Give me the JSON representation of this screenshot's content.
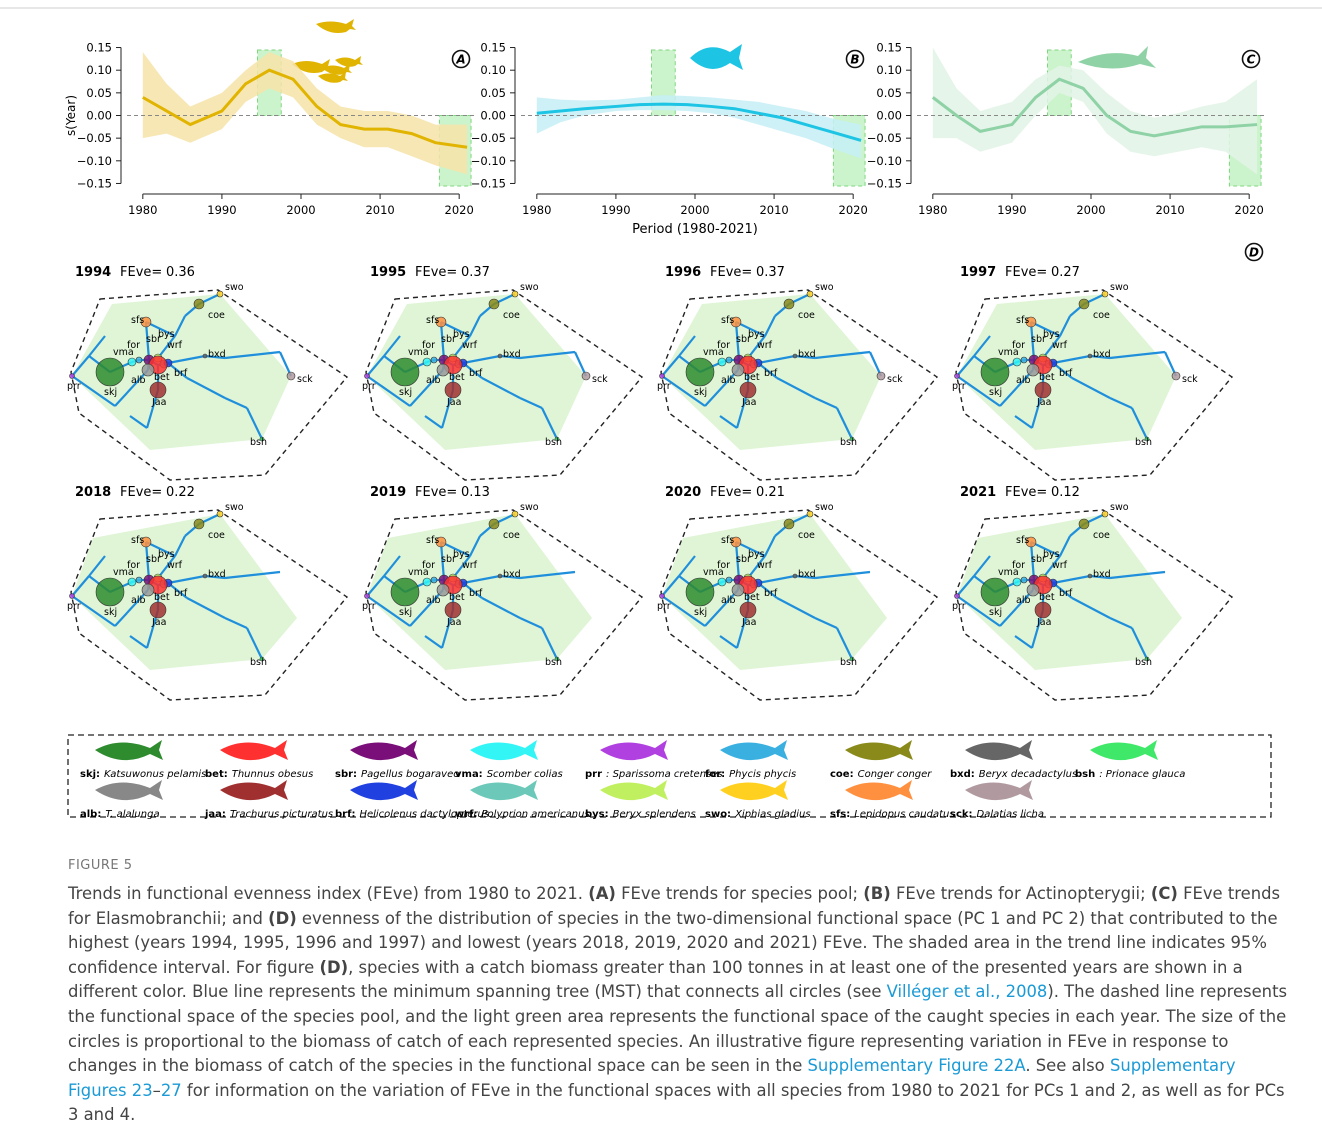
{
  "chart_data": [
    {
      "type": "line",
      "panel_label": "A",
      "ylabel": "s(Year)",
      "x": [
        1980,
        1983,
        1986,
        1990,
        1993,
        1996,
        1999,
        2002,
        2005,
        2008,
        2011,
        2014,
        2017,
        2021
      ],
      "series": [
        {
          "color": "#e0b400",
          "values": [
            0.04,
            0.01,
            -0.02,
            0.01,
            0.07,
            0.1,
            0.08,
            0.02,
            -0.02,
            -0.03,
            -0.03,
            -0.04,
            -0.06,
            -0.07
          ]
        }
      ],
      "ci_upper": [
        0.14,
        0.07,
        0.02,
        0.05,
        0.1,
        0.14,
        0.12,
        0.06,
        0.02,
        0.01,
        0.01,
        0.0,
        -0.02,
        -0.02
      ],
      "ci_lower": [
        -0.05,
        -0.04,
        -0.06,
        -0.03,
        0.03,
        0.06,
        0.04,
        -0.02,
        -0.05,
        -0.07,
        -0.07,
        -0.09,
        -0.11,
        -0.13
      ],
      "band_color": "#f6e3a8",
      "hline": 0,
      "highlight_years": [
        [
          1995,
          1997
        ],
        [
          2018,
          2021
        ]
      ],
      "xlim": [
        1978,
        2022
      ],
      "ylim": [
        -0.16,
        0.16
      ],
      "xticks": [
        1980,
        1990,
        2000,
        2010,
        2020
      ],
      "yticks": [
        {
          "value": 0.15,
          "label": "0.15"
        },
        {
          "value": 0.1,
          "label": "0.10"
        },
        {
          "value": 0.05,
          "label": "0.05"
        },
        {
          "value": 0,
          "label": "0.00"
        },
        {
          "value": -0.05,
          "label": "−0.05"
        },
        {
          "value": -0.1,
          "label": "−0.10"
        },
        {
          "value": -0.15,
          "label": "−0.15"
        }
      ]
    },
    {
      "type": "line",
      "panel_label": "B",
      "xlabel": "Period (1980-2021)",
      "x": [
        1980,
        1983,
        1986,
        1990,
        1993,
        1996,
        1999,
        2002,
        2005,
        2008,
        2011,
        2014,
        2017,
        2021
      ],
      "series": [
        {
          "color": "#1ec4e4",
          "values": [
            0.005,
            0.01,
            0.015,
            0.02,
            0.024,
            0.025,
            0.024,
            0.02,
            0.015,
            0.005,
            -0.005,
            -0.02,
            -0.035,
            -0.055
          ]
        }
      ],
      "ci_upper": [
        0.04,
        0.035,
        0.033,
        0.035,
        0.04,
        0.045,
        0.043,
        0.04,
        0.035,
        0.03,
        0.02,
        0.01,
        -0.005,
        -0.02
      ],
      "ci_lower": [
        -0.04,
        -0.015,
        0,
        0.01,
        0.012,
        0.012,
        0.01,
        0.005,
        -0.005,
        -0.02,
        -0.035,
        -0.05,
        -0.07,
        -0.095
      ],
      "band_color": "#c6eef6",
      "hline": 0,
      "highlight_years": [
        [
          1995,
          1997
        ],
        [
          2018,
          2021
        ]
      ],
      "xlim": [
        1978,
        2022
      ],
      "ylim": [
        -0.16,
        0.16
      ],
      "xticks": [
        1980,
        1990,
        2000,
        2010,
        2020
      ],
      "yticks": [
        {
          "value": 0.15,
          "label": "0.15"
        },
        {
          "value": 0.1,
          "label": "0.10"
        },
        {
          "value": 0.05,
          "label": "0.05"
        },
        {
          "value": 0,
          "label": "0.00"
        },
        {
          "value": -0.05,
          "label": "−0.05"
        },
        {
          "value": -0.1,
          "label": "−0.10"
        },
        {
          "value": -0.15,
          "label": "−0.15"
        }
      ]
    },
    {
      "type": "line",
      "panel_label": "C",
      "x": [
        1980,
        1983,
        1986,
        1990,
        1993,
        1996,
        1999,
        2002,
        2005,
        2008,
        2011,
        2014,
        2017,
        2021
      ],
      "series": [
        {
          "color": "#8ed2a6",
          "values": [
            0.04,
            0.0,
            -0.035,
            -0.02,
            0.04,
            0.08,
            0.06,
            0.0,
            -0.035,
            -0.045,
            -0.035,
            -0.025,
            -0.025,
            -0.02
          ]
        }
      ],
      "ci_upper": [
        0.15,
        0.06,
        0.01,
        0.03,
        0.08,
        0.11,
        0.1,
        0.05,
        0.01,
        -0.005,
        0.005,
        0.02,
        0.03,
        0.08
      ],
      "ci_lower": [
        -0.05,
        -0.05,
        -0.08,
        -0.06,
        0.0,
        0.05,
        0.03,
        -0.04,
        -0.08,
        -0.09,
        -0.08,
        -0.07,
        -0.08,
        -0.13
      ],
      "band_color": "#e2f3e6",
      "hline": 0,
      "highlight_years": [
        [
          1995,
          1997
        ],
        [
          2018,
          2021
        ]
      ],
      "xlim": [
        1978,
        2022
      ],
      "ylim": [
        -0.16,
        0.16
      ],
      "xticks": [
        1980,
        1990,
        2000,
        2010,
        2020
      ],
      "yticks": [
        {
          "value": 0.15,
          "label": "0.15"
        },
        {
          "value": 0.1,
          "label": "0.10"
        },
        {
          "value": 0.05,
          "label": "0.05"
        },
        {
          "value": 0,
          "label": "0.00"
        },
        {
          "value": -0.05,
          "label": "−0.05"
        },
        {
          "value": -0.1,
          "label": "−0.10"
        },
        {
          "value": -0.15,
          "label": "−0.15"
        }
      ]
    }
  ],
  "panel_d": {
    "panel_label": "D",
    "index_prefix": "FEve=",
    "panels": [
      {
        "year": 1994,
        "feve": 0.36,
        "labels": [
          "skj",
          "vma",
          "for",
          "sbr",
          "bys",
          "sfs",
          "swo",
          "coe",
          "wrf",
          "bxd",
          "brf",
          "bet",
          "alb",
          "Jaa",
          "prr",
          "bsh",
          "sck"
        ]
      },
      {
        "year": 1995,
        "feve": 0.37,
        "labels": [
          "skj",
          "vma",
          "for",
          "sbr",
          "bys",
          "sfs",
          "swo",
          "coe",
          "wrf",
          "bxd",
          "brf",
          "bet",
          "alb",
          "Jaa",
          "prr",
          "bsh",
          "sck"
        ]
      },
      {
        "year": 1996,
        "feve": 0.37,
        "labels": [
          "skj",
          "vma",
          "for",
          "sbr",
          "bys",
          "sfs",
          "swo",
          "coe",
          "wrf",
          "bxd",
          "brf",
          "bet",
          "alb",
          "Jaa",
          "prr",
          "bsh",
          "sck"
        ]
      },
      {
        "year": 1997,
        "feve": 0.27,
        "labels": [
          "skj",
          "vma",
          "for",
          "sbr",
          "bys",
          "sfs",
          "swo",
          "coe",
          "wrf",
          "bxd",
          "brf",
          "bet",
          "alb",
          "Jaa",
          "prr",
          "bsh",
          "sck"
        ]
      },
      {
        "year": 2018,
        "feve": 0.22,
        "labels": [
          "skj",
          "vma",
          "for",
          "sbr",
          "bys",
          "sfs",
          "swo",
          "coe",
          "wrf",
          "bxd",
          "brf",
          "bet",
          "alb",
          "Jaa",
          "prr",
          "bsh"
        ]
      },
      {
        "year": 2019,
        "feve": 0.13,
        "labels": [
          "skj",
          "vma",
          "for",
          "sbr",
          "bys",
          "sfs",
          "swo",
          "coe",
          "wrf",
          "bxd",
          "brf",
          "bet",
          "alb",
          "Jaa",
          "prr",
          "bsh"
        ]
      },
      {
        "year": 2020,
        "feve": 0.21,
        "labels": [
          "skj",
          "vma",
          "for",
          "sbr",
          "bys",
          "sfs",
          "swo",
          "coe",
          "wrf",
          "bxd",
          "brf",
          "bet",
          "alb",
          "Jaa",
          "prr",
          "bsh"
        ]
      },
      {
        "year": 2021,
        "feve": 0.12,
        "labels": [
          "skj",
          "vma",
          "for",
          "sbr",
          "bys",
          "sfs",
          "swo",
          "coe",
          "wrf",
          "bxd",
          "brf",
          "bet",
          "alb",
          "Jaa",
          "prr",
          "bsh"
        ]
      }
    ]
  },
  "legend": [
    {
      "code": "skj:",
      "name": "Katsuwonus pelamis",
      "color": "#2e8b2e"
    },
    {
      "code": "bet:",
      "name": "Thunnus obesus",
      "color": "#ff3030"
    },
    {
      "code": "sbr:",
      "name": "Pagellus bogaraveo",
      "color": "#7a0f7a"
    },
    {
      "code": "vma:",
      "name": "Scomber colias",
      "color": "#33f5f5"
    },
    {
      "code": "prr",
      "name": ": Sparissoma cretenses",
      "color": "#b040e0"
    },
    {
      "code": "for:",
      "name": "Phycis phycis",
      "color": "#3ab0e0"
    },
    {
      "code": "coe:",
      "name": "Conger conger",
      "color": "#8a8a1a"
    },
    {
      "code": "bxd:",
      "name": "Beryx decadactylus",
      "color": "#666666"
    },
    {
      "code": "bsh",
      "name": ": Prionace glauca",
      "color": "#3fe868"
    },
    {
      "code": "alb:",
      "name": "T. alalunga",
      "color": "#888888"
    },
    {
      "code": "jaa:",
      "name": "Trachurus picturatus",
      "color": "#a03030"
    },
    {
      "code": "brf:",
      "name": "Helicolenus dactylopterus",
      "color": "#2040e0"
    },
    {
      "code": "wrf:",
      "name": "Polyprion americanus",
      "color": "#6cc8b8"
    },
    {
      "code": "bys:",
      "name": "Beryx splendens",
      "color": "#c0f060"
    },
    {
      "code": "swo:",
      "name": "Xiphias gladius",
      "color": "#ffd020"
    },
    {
      "code": "sfs:",
      "name": "Lepidopus caudatus",
      "color": "#ff9040"
    },
    {
      "code": "sck:",
      "name": "Dalatias licha",
      "color": "#b09aa0"
    }
  ],
  "caption": {
    "label": "FIGURE 5",
    "parts": [
      {
        "text": "Trends in functional evenness index (FEve) from 1980 to 2021. "
      },
      {
        "text": "(A)",
        "bold": true
      },
      {
        "text": " FEve trends for species pool; "
      },
      {
        "text": "(B)",
        "bold": true
      },
      {
        "text": " FEve trends for Actinopterygii; "
      },
      {
        "text": "(C)",
        "bold": true
      },
      {
        "text": " FEve trends for Elasmobranchii; and "
      },
      {
        "text": "(D)",
        "bold": true
      },
      {
        "text": " evenness of the distribution of species in the two-dimensional functional space (PC 1 and PC 2) that contributed to the highest (years 1994, 1995, 1996 and 1997) and lowest (years 2018, 2019, 2020 and 2021) FEve. The shaded area in the trend line indicates 95% confidence interval. For figure "
      },
      {
        "text": "(D)",
        "bold": true
      },
      {
        "text": ", species with a catch biomass greater than 100 tonnes in at least one of the presented years are shown in a different color. Blue line represents the minimum spanning tree (MST) that connects all circles (see "
      },
      {
        "text": "Villéger et al., 2008",
        "link": true
      },
      {
        "text": "). The dashed line represents the functional space of the species pool, and the light green area represents the functional space of the caught species in each year. The size of the circles is proportional to the biomass of catch of each represented species. An illustrative figure representing variation in FEve in response to changes in the biomass of catch of the species in the functional space can be seen in the "
      },
      {
        "text": "Supplementary Figure 22A",
        "link": true
      },
      {
        "text": ". See also "
      },
      {
        "text": "Supplementary Figures 23",
        "link": true
      },
      {
        "text": "–"
      },
      {
        "text": "27",
        "link": true
      },
      {
        "text": " for information on the variation of FEve in the functional spaces with all species from 1980 to 2021 for PCs 1 and 2, as well as for PCs 3 and 4."
      }
    ]
  }
}
